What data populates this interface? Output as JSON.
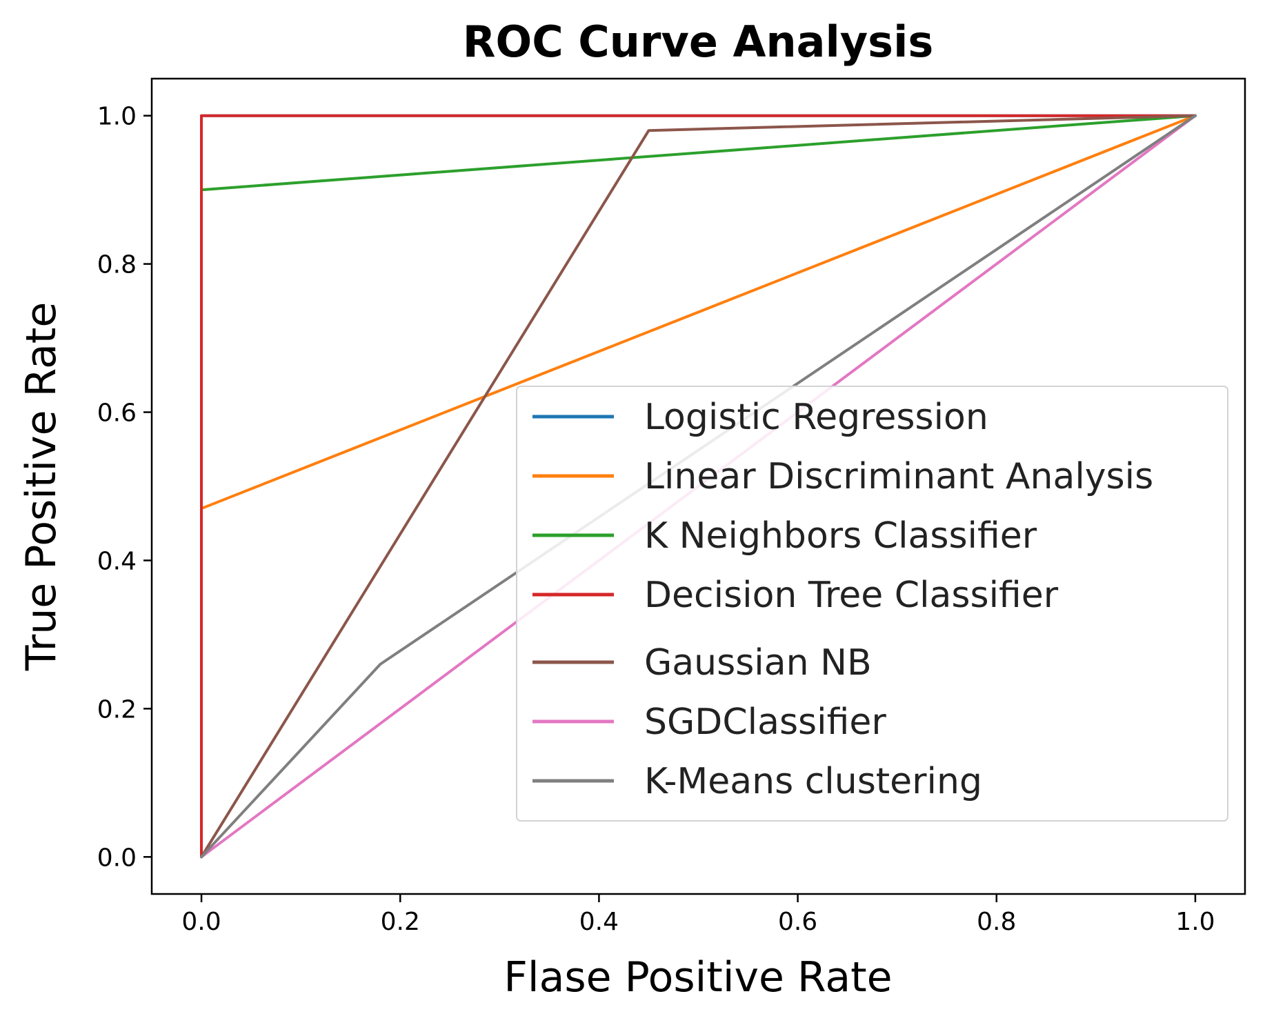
{
  "chart_data": {
    "type": "line",
    "title": "ROC Curve Analysis",
    "xlabel": "Flase Positive Rate",
    "ylabel": "True Positive Rate",
    "xlim": [
      -0.05,
      1.05
    ],
    "ylim": [
      -0.05,
      1.05
    ],
    "xticks": [
      0.0,
      0.2,
      0.4,
      0.6,
      0.8,
      1.0
    ],
    "xtick_labels": [
      "0.0",
      "0.2",
      "0.4",
      "0.6",
      "0.8",
      "1.0"
    ],
    "yticks": [
      0.0,
      0.2,
      0.4,
      0.6,
      0.8,
      1.0
    ],
    "ytick_labels": [
      "0.0",
      "0.2",
      "0.4",
      "0.6",
      "0.8",
      "1.0"
    ],
    "grid": false,
    "legend_position": "lower-right",
    "series": [
      {
        "name": "Logistic Regression",
        "color": "#1f77b4",
        "x": [
          0.0,
          0.0,
          1.0
        ],
        "y": [
          0.0,
          1.0,
          1.0
        ]
      },
      {
        "name": "Linear Discriminant Analysis",
        "color": "#ff7f0e",
        "x": [
          0.0,
          0.0,
          1.0
        ],
        "y": [
          0.0,
          0.47,
          1.0
        ]
      },
      {
        "name": "K Neighbors Classifier",
        "color": "#2ca02c",
        "x": [
          0.0,
          0.0,
          1.0
        ],
        "y": [
          0.0,
          0.9,
          1.0
        ]
      },
      {
        "name": "Decision Tree Classifier",
        "color": "#d62728",
        "x": [
          0.0,
          0.0,
          1.0
        ],
        "y": [
          0.0,
          1.0,
          1.0
        ]
      },
      {
        "name": "Gaussian NB",
        "color": "#8c564b",
        "x": [
          0.0,
          0.45,
          1.0
        ],
        "y": [
          0.0,
          0.98,
          1.0
        ]
      },
      {
        "name": "SGDClassifier",
        "color": "#e377c2",
        "x": [
          0.0,
          1.0
        ],
        "y": [
          0.0,
          1.0
        ]
      },
      {
        "name": "K-Means clustering",
        "color": "#7f7f7f",
        "x": [
          0.0,
          0.18,
          1.0
        ],
        "y": [
          0.0,
          0.26,
          1.0
        ]
      }
    ]
  }
}
